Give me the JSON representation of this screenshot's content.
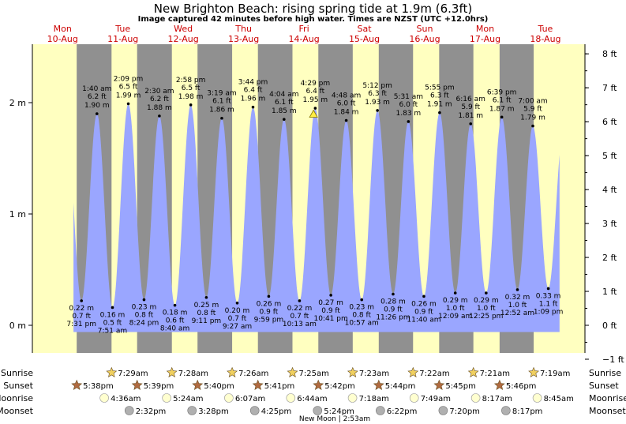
{
  "header": {
    "title": "New Brighton Beach: rising  spring tide at 1.9m (6.3ft)",
    "subtitle": "Image captured 42 minutes before high water. Times are NZST (UTC +12.0hrs)"
  },
  "colors": {
    "day": "#ffffc0",
    "night": "#909090",
    "tide": "#9aa6ff",
    "day_label": "#cc0000",
    "sunrise_star": "#f0d060",
    "sunset_star": "#b06a40",
    "moonrise": "#ffffd0",
    "moonset": "#b0b0b0"
  },
  "chart_data": {
    "type": "area",
    "title": "New Brighton Beach: rising  spring tide at 1.9m (6.3ft)",
    "ylim_m": [
      -0.35,
      2.58
    ],
    "left_axis": {
      "unit": "m",
      "ticks": [
        "0 m",
        "1 m",
        "2 m"
      ],
      "values": [
        0,
        1,
        2
      ]
    },
    "right_axis": {
      "unit": "ft",
      "ticks": [
        "−1 ft",
        "0 ft",
        "1 ft",
        "2 ft",
        "3 ft",
        "4 ft",
        "5 ft",
        "6 ft",
        "7 ft",
        "8 ft"
      ],
      "values": [
        -1,
        0,
        1,
        2,
        3,
        4,
        5,
        6,
        7,
        8
      ]
    },
    "days": [
      {
        "dow": "Mon",
        "date": "10-Aug",
        "hour": 12
      },
      {
        "dow": "Tue",
        "date": "11-Aug",
        "hour": 36
      },
      {
        "dow": "Wed",
        "date": "12-Aug",
        "hour": 60
      },
      {
        "dow": "Thu",
        "date": "13-Aug",
        "hour": 84
      },
      {
        "dow": "Fri",
        "date": "14-Aug",
        "hour": 108
      },
      {
        "dow": "Sat",
        "date": "15-Aug",
        "hour": 132
      },
      {
        "dow": "Sun",
        "date": "16-Aug",
        "hour": 156
      },
      {
        "dow": "Mon",
        "date": "17-Aug",
        "hour": 180
      },
      {
        "dow": "Tue",
        "date": "18-Aug",
        "hour": 204
      }
    ],
    "nights": [
      [
        17.63,
        31.48
      ],
      [
        41.65,
        55.47
      ],
      [
        65.67,
        79.43
      ],
      [
        89.68,
        103.42
      ],
      [
        113.7,
        127.38
      ],
      [
        137.73,
        151.37
      ],
      [
        161.75,
        175.35
      ],
      [
        185.77,
        199.32
      ]
    ],
    "extremes": [
      {
        "time": "7:31 pm",
        "hour": 19.52,
        "m": 0.22,
        "ft": "0.7 ft",
        "type": "low"
      },
      {
        "time": "1:40 am",
        "hour": 25.67,
        "m": 1.9,
        "ft": "6.2 ft",
        "type": "high"
      },
      {
        "time": "7:51 am",
        "hour": 31.85,
        "m": 0.16,
        "ft": "0.5 ft",
        "type": "low"
      },
      {
        "time": "2:09 pm",
        "hour": 38.15,
        "m": 1.99,
        "ft": "6.5 ft",
        "type": "high"
      },
      {
        "time": "8:24 pm",
        "hour": 44.4,
        "m": 0.23,
        "ft": "0.8 ft",
        "type": "low"
      },
      {
        "time": "2:30 am",
        "hour": 50.5,
        "m": 1.88,
        "ft": "6.2 ft",
        "type": "high"
      },
      {
        "time": "8:40 am",
        "hour": 56.67,
        "m": 0.18,
        "ft": "0.6 ft",
        "type": "low"
      },
      {
        "time": "2:58 pm",
        "hour": 62.97,
        "m": 1.98,
        "ft": "6.5 ft",
        "type": "high"
      },
      {
        "time": "9:11 pm",
        "hour": 69.18,
        "m": 0.25,
        "ft": "0.8 ft",
        "type": "low"
      },
      {
        "time": "3:19 am",
        "hour": 75.32,
        "m": 1.86,
        "ft": "6.1 ft",
        "type": "high"
      },
      {
        "time": "9:27 am",
        "hour": 81.45,
        "m": 0.2,
        "ft": "0.7 ft",
        "type": "low"
      },
      {
        "time": "3:44 pm",
        "hour": 87.73,
        "m": 1.96,
        "ft": "6.4 ft",
        "type": "high"
      },
      {
        "time": "9:59 pm",
        "hour": 93.98,
        "m": 0.26,
        "ft": "0.9 ft",
        "type": "low"
      },
      {
        "time": "4:04 am",
        "hour": 100.07,
        "m": 1.85,
        "ft": "6.1 ft",
        "type": "high"
      },
      {
        "time": "10:13 am",
        "hour": 106.22,
        "m": 0.22,
        "ft": "0.7 ft",
        "type": "low"
      },
      {
        "time": "4:29 pm",
        "hour": 112.48,
        "m": 1.95,
        "ft": "6.4 ft",
        "type": "high"
      },
      {
        "time": "10:41 pm",
        "hour": 118.68,
        "m": 0.27,
        "ft": "0.9 ft",
        "type": "low"
      },
      {
        "time": "4:48 am",
        "hour": 124.8,
        "m": 1.84,
        "ft": "6.0 ft",
        "type": "high"
      },
      {
        "time": "10:57 am",
        "hour": 130.95,
        "m": 0.23,
        "ft": "0.8 ft",
        "type": "low"
      },
      {
        "time": "5:12 pm",
        "hour": 137.2,
        "m": 1.93,
        "ft": "6.3 ft",
        "type": "high"
      },
      {
        "time": "11:26 pm",
        "hour": 143.43,
        "m": 0.28,
        "ft": "0.9 ft",
        "type": "low"
      },
      {
        "time": "5:31 am",
        "hour": 149.52,
        "m": 1.83,
        "ft": "6.0 ft",
        "type": "high"
      },
      {
        "time": "11:40 am",
        "hour": 155.67,
        "m": 0.26,
        "ft": "0.9 ft",
        "type": "low"
      },
      {
        "time": "5:55 pm",
        "hour": 161.92,
        "m": 1.91,
        "ft": "6.3 ft",
        "type": "high"
      },
      {
        "time": "12:09 am",
        "hour": 168.15,
        "m": 0.29,
        "ft": "1.0 ft",
        "type": "low"
      },
      {
        "time": "6:16 am",
        "hour": 174.27,
        "m": 1.81,
        "ft": "5.9 ft",
        "type": "high"
      },
      {
        "time": "12:25 pm",
        "hour": 180.42,
        "m": 0.29,
        "ft": "1.0 ft",
        "type": "low"
      },
      {
        "time": "6:39 pm",
        "hour": 186.65,
        "m": 1.87,
        "ft": "6.1 ft",
        "type": "high"
      },
      {
        "time": "12:52 am",
        "hour": 192.87,
        "m": 0.32,
        "ft": "1.0 ft",
        "type": "low"
      },
      {
        "time": "7:00 am",
        "hour": 199.0,
        "m": 1.79,
        "ft": "5.9 ft",
        "type": "high"
      },
      {
        "time": "1:09 pm",
        "hour": 205.15,
        "m": 0.33,
        "ft": "1.1 ft",
        "type": "low"
      }
    ],
    "current_marker_hour": 111.78,
    "xlim_hours": [
      0,
      216
    ]
  },
  "ephemeris": {
    "row_labels": [
      "Sunrise",
      "Sunset",
      "Moonrise",
      "Moonset"
    ],
    "sunrise": [
      {
        "hour": 31.48,
        "time": "7:29am"
      },
      {
        "hour": 55.47,
        "time": "7:28am"
      },
      {
        "hour": 79.43,
        "time": "7:26am"
      },
      {
        "hour": 103.42,
        "time": "7:25am"
      },
      {
        "hour": 127.38,
        "time": "7:23am"
      },
      {
        "hour": 151.37,
        "time": "7:22am"
      },
      {
        "hour": 175.35,
        "time": "7:21am"
      },
      {
        "hour": 199.32,
        "time": "7:19am"
      }
    ],
    "sunset": [
      {
        "hour": 17.63,
        "time": "5:38pm"
      },
      {
        "hour": 41.65,
        "time": "5:39pm"
      },
      {
        "hour": 65.67,
        "time": "5:40pm"
      },
      {
        "hour": 89.68,
        "time": "5:41pm"
      },
      {
        "hour": 113.7,
        "time": "5:42pm"
      },
      {
        "hour": 137.73,
        "time": "5:44pm"
      },
      {
        "hour": 161.75,
        "time": "5:45pm"
      },
      {
        "hour": 185.77,
        "time": "5:46pm"
      }
    ],
    "moonrise": [
      {
        "hour": 28.6,
        "time": "4:36am"
      },
      {
        "hour": 53.4,
        "time": "5:24am"
      },
      {
        "hour": 78.12,
        "time": "6:07am"
      },
      {
        "hour": 102.73,
        "time": "6:44am"
      },
      {
        "hour": 127.3,
        "time": "7:18am"
      },
      {
        "hour": 151.82,
        "time": "7:49am"
      },
      {
        "hour": 176.28,
        "time": "8:17am"
      },
      {
        "hour": 200.75,
        "time": "8:45am"
      }
    ],
    "moonset": [
      {
        "hour": 38.53,
        "time": "2:32pm"
      },
      {
        "hour": 63.47,
        "time": "3:28pm"
      },
      {
        "hour": 88.42,
        "time": "4:25pm"
      },
      {
        "hour": 113.4,
        "time": "5:24pm"
      },
      {
        "hour": 138.37,
        "time": "6:22pm"
      },
      {
        "hour": 163.33,
        "time": "7:20pm"
      },
      {
        "hour": 188.28,
        "time": "8:17pm"
      }
    ],
    "moon_phase": "New Moon | 2:53am"
  }
}
